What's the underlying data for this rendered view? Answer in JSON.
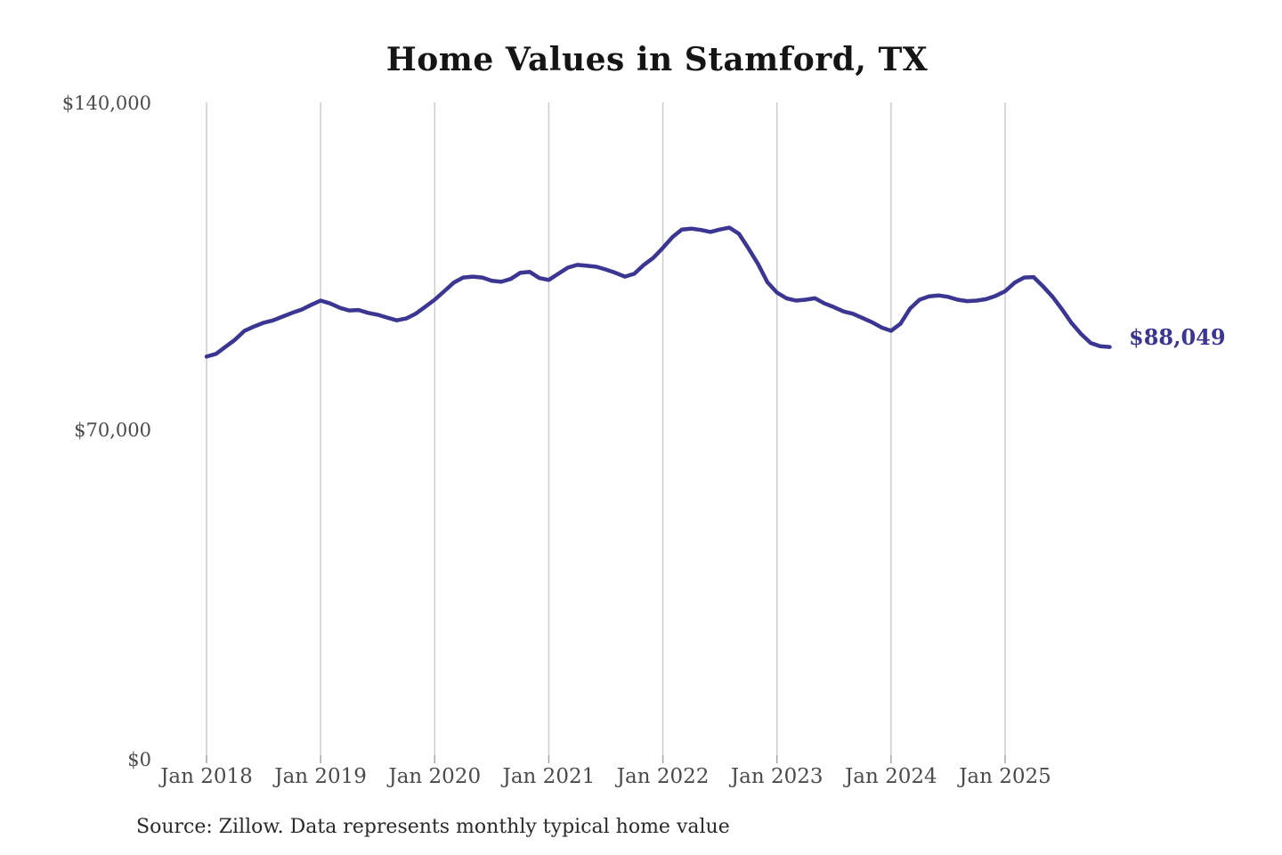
{
  "title": "Home Values in Stamford, TX",
  "end_label": "$88,049",
  "source_note": "Source: Zillow. Data represents monthly typical home value",
  "axes": {
    "y_ticks": [
      "$140,000",
      "$70,000",
      "$0"
    ],
    "x_ticks": [
      "Jan 2018",
      "Jan 2019",
      "Jan 2020",
      "Jan 2021",
      "Jan 2022",
      "Jan 2023",
      "Jan 2024",
      "Jan 2025"
    ]
  },
  "colors": {
    "line": "#3c3693",
    "gridline": "#cccccc",
    "tick": "#a6a6a6",
    "axis_text": "#4b4b4b",
    "title_text": "#151515",
    "source_text": "#2a2a2a",
    "background": "#ffffff"
  },
  "chart_data": {
    "type": "line",
    "title": "Home Values in Stamford, TX",
    "xlabel": "",
    "ylabel": "",
    "ylim": [
      0,
      140000
    ],
    "y_tick_values": [
      0,
      70000,
      140000
    ],
    "y_tick_labels": [
      "$0",
      "$70,000",
      "$140,000"
    ],
    "x_tick_labels": [
      "Jan 2018",
      "Jan 2019",
      "Jan 2020",
      "Jan 2021",
      "Jan 2022",
      "Jan 2023",
      "Jan 2024",
      "Jan 2025"
    ],
    "grid": "vertical-only",
    "legend": "none",
    "series_name": "Typical home value (monthly, Zillow)",
    "start_month": "2018-01",
    "end_month": "2025-12",
    "last_value": 88049,
    "last_value_label": "$88,049",
    "values": [
      86000,
      86600,
      88100,
      89600,
      91500,
      92400,
      93200,
      93700,
      94500,
      95300,
      96000,
      97000,
      97900,
      97300,
      96400,
      95800,
      95900,
      95300,
      94900,
      94300,
      93700,
      94100,
      95100,
      96600,
      98100,
      99900,
      101700,
      102800,
      103000,
      102800,
      102100,
      101900,
      102500,
      103800,
      104000,
      102700,
      102300,
      103600,
      104900,
      105500,
      105300,
      105100,
      104500,
      103800,
      103000,
      103600,
      105500,
      107000,
      109100,
      111400,
      113000,
      113200,
      112900,
      112500,
      113000,
      113400,
      112100,
      109000,
      105700,
      101800,
      99600,
      98400,
      97900,
      98100,
      98400,
      97300,
      96500,
      95600,
      95100,
      94200,
      93300,
      92200,
      91500,
      93000,
      96200,
      98100,
      98800,
      99000,
      98700,
      98100,
      97800,
      97900,
      98200,
      98900,
      99900,
      101700,
      102800,
      102900,
      100900,
      98700,
      96000,
      93100,
      90800,
      88900,
      88200,
      88049
    ]
  }
}
